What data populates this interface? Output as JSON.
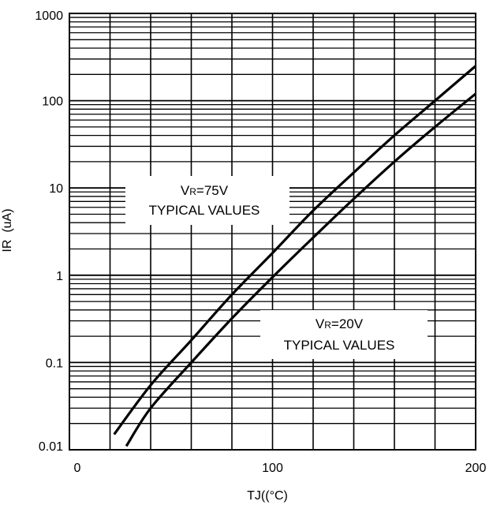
{
  "chart_data": {
    "type": "line",
    "title": "",
    "xlabel": "TJ((°C)",
    "ylabel": "IR  (uA)",
    "xlim": [
      0,
      200
    ],
    "ylim": [
      0.01,
      1000
    ],
    "y_scale": "log",
    "grid": true,
    "x_ticks": [
      {
        "value": 0,
        "label": "0"
      },
      {
        "value": 100,
        "label": "100"
      },
      {
        "value": 200,
        "label": "200"
      }
    ],
    "y_ticks": [
      {
        "value": 0.01,
        "label": "0.01"
      },
      {
        "value": 0.1,
        "label": "0.1"
      },
      {
        "value": 1,
        "label": "1"
      },
      {
        "value": 10,
        "label": "10"
      },
      {
        "value": 100,
        "label": "100"
      },
      {
        "value": 1000,
        "label": "1000"
      }
    ],
    "series": [
      {
        "x": [
          22,
          40,
          60,
          80,
          100,
          120,
          140,
          160,
          180,
          200
        ],
        "y": [
          0.015,
          0.055,
          0.18,
          0.6,
          1.8,
          5.5,
          15,
          40,
          100,
          250
        ]
      },
      {
        "x": [
          28,
          40,
          60,
          80,
          100,
          120,
          140,
          160,
          180,
          200
        ],
        "y": [
          0.011,
          0.03,
          0.1,
          0.32,
          0.95,
          2.7,
          7.5,
          20,
          50,
          120
        ]
      }
    ],
    "annotations": [
      {
        "line1_main": "V",
        "line1_sub": "R",
        "line1_rest": "=75V",
        "line2": "TYPICAL  VALUES"
      },
      {
        "line1_main": "V",
        "line1_sub": "R",
        "line1_rest": "=20V",
        "line2": "TYPICAL  VALUES"
      }
    ]
  }
}
